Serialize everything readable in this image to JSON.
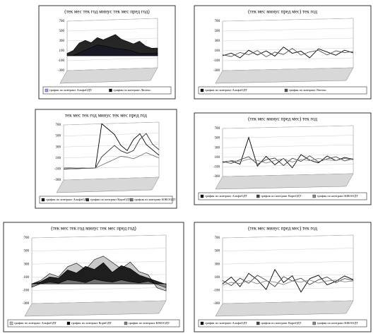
{
  "chart_data": [
    {
      "type": "area",
      "title": "(тек мес тек год минус тек мес пред год)",
      "ylim": [
        -300,
        700
      ],
      "yticks": [
        -300,
        -100,
        100,
        300,
        500,
        700
      ],
      "series": [
        {
          "name": "график по контракт АльфаОДТ",
          "color": "#9999ff",
          "values": [
            0,
            0,
            50,
            100,
            150,
            200,
            180,
            150,
            120,
            100,
            80,
            50,
            0,
            0,
            0,
            0
          ]
        },
        {
          "name": "график по контракт Лютекс",
          "color": "#000000",
          "values": [
            50,
            100,
            250,
            300,
            250,
            350,
            300,
            350,
            400,
            300,
            250,
            200,
            250,
            150,
            100,
            100
          ]
        }
      ]
    },
    {
      "type": "line",
      "title": "(тек мес минус пред мес) тек год",
      "ylim": [
        -300,
        700
      ],
      "yticks": [
        -300,
        -100,
        100,
        300,
        500,
        700
      ],
      "series": [
        {
          "name": "график по контракт АльфаОДТ",
          "color": "#000000",
          "values": [
            0,
            50,
            -50,
            100,
            0,
            80,
            -30,
            150,
            20,
            60,
            -80,
            100,
            30,
            -40,
            60,
            0
          ]
        },
        {
          "name": "график по контракт Лютекс",
          "color": "#555555",
          "values": [
            20,
            -20,
            60,
            10,
            90,
            -40,
            50,
            0,
            120,
            -20,
            40,
            70,
            -30,
            50,
            10,
            30
          ]
        }
      ]
    },
    {
      "type": "line",
      "title": "тек мес тек год минус тек мес пред год",
      "ylim": [
        -300,
        700
      ],
      "yticks": [
        -300,
        -100,
        100,
        300,
        500,
        700
      ],
      "series": [
        {
          "name": "график по контракт АльфаОДТ",
          "color": "#000000",
          "values": [
            -100,
            -100,
            -100,
            -100,
            -100,
            -100,
            700,
            600,
            500,
            300,
            200,
            400,
            500,
            300,
            200,
            100
          ]
        },
        {
          "name": "график по контракт КорнОДТ",
          "color": "#333333",
          "values": [
            -100,
            -100,
            -100,
            -100,
            -100,
            -100,
            100,
            200,
            300,
            200,
            150,
            200,
            400,
            500,
            300,
            200
          ]
        },
        {
          "name": "график по контракт ЮКООДТ",
          "color": "#777777",
          "values": [
            -80,
            -80,
            -90,
            -90,
            -100,
            -100,
            -50,
            0,
            50,
            100,
            80,
            50,
            100,
            150,
            100,
            50
          ]
        }
      ]
    },
    {
      "type": "line",
      "title": "(тек мес минус пред мес) тек год",
      "ylim": [
        -300,
        700
      ],
      "yticks": [
        -300,
        -100,
        100,
        300,
        500,
        700
      ],
      "series": [
        {
          "name": "график по контракт АльфаОДТ",
          "color": "#000000",
          "values": [
            0,
            20,
            -50,
            500,
            -100,
            100,
            -80,
            50,
            -150,
            120,
            0,
            -60,
            80,
            -20,
            40,
            0
          ]
        },
        {
          "name": "график по контракт КорнОДТ",
          "color": "#444444",
          "values": [
            10,
            -30,
            40,
            100,
            -60,
            30,
            60,
            -100,
            50,
            -20,
            90,
            -40,
            20,
            60,
            -30,
            10
          ]
        },
        {
          "name": "график по контракт ЮКООДТ",
          "color": "#888888",
          "values": [
            -20,
            30,
            0,
            50,
            20,
            -40,
            10,
            40,
            -30,
            20,
            -10,
            30,
            0,
            -20,
            20,
            -10
          ]
        }
      ]
    },
    {
      "type": "area",
      "title": "(тек мес тек год минус тек мес пред год)",
      "ylim": [
        -300,
        700
      ],
      "yticks": [
        -300,
        -100,
        100,
        300,
        500,
        700
      ],
      "series": [
        {
          "name": "график по контракт АльфаОДТ",
          "color": "#c0c0c0",
          "values": [
            0,
            50,
            150,
            100,
            250,
            300,
            200,
            350,
            400,
            300,
            200,
            300,
            150,
            100,
            -100,
            -150
          ]
        },
        {
          "name": "график по контракт КорнОДТ",
          "color": "#000000",
          "values": [
            0,
            30,
            100,
            80,
            200,
            150,
            250,
            200,
            300,
            150,
            250,
            200,
            100,
            50,
            0,
            -50
          ]
        },
        {
          "name": "график по контракт ЮКООДТ",
          "color": "#808080",
          "values": [
            -50,
            0,
            20,
            0,
            50,
            30,
            0,
            50,
            20,
            0,
            30,
            0,
            -20,
            0,
            -50,
            -100
          ]
        }
      ]
    },
    {
      "type": "line",
      "title": "(тек мес минус пред мес) тек год",
      "ylim": [
        -300,
        700
      ],
      "yticks": [
        -300,
        -100,
        100,
        300,
        500,
        700
      ],
      "series": [
        {
          "name": "график по контракт АльфаОДТ",
          "color": "#000000",
          "values": [
            0,
            100,
            -50,
            150,
            50,
            -100,
            200,
            0,
            100,
            -150,
            50,
            100,
            -50,
            0,
            80,
            20
          ]
        },
        {
          "name": "график по контракт КорнОДТ",
          "color": "#444444",
          "values": [
            50,
            -30,
            80,
            0,
            120,
            40,
            -60,
            90,
            20,
            60,
            -40,
            30,
            70,
            -20,
            40,
            10
          ]
        },
        {
          "name": "график по контракт ЮКООДТ",
          "color": "#888888",
          "values": [
            -20,
            20,
            0,
            40,
            -10,
            30,
            10,
            -30,
            20,
            0,
            30,
            -20,
            10,
            20,
            -10,
            0
          ]
        }
      ]
    }
  ]
}
